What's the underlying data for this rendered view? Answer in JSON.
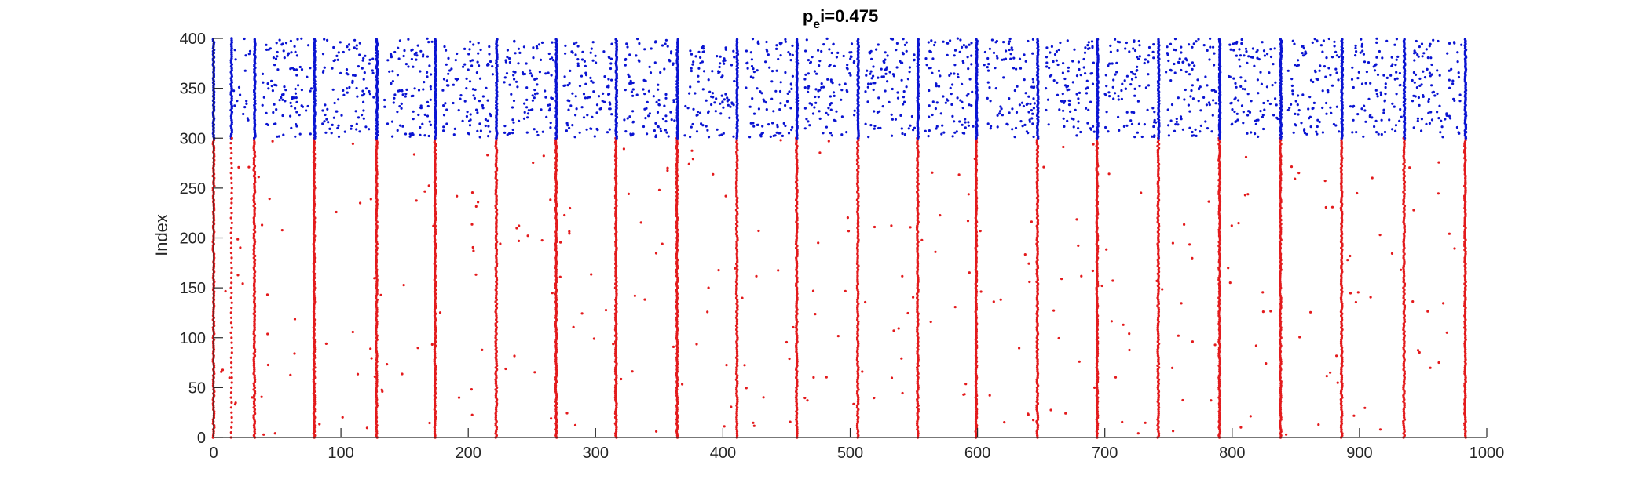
{
  "chart_data": {
    "type": "scatter",
    "title_main": "p",
    "title_sub": "e",
    "title_rest": "i=0.475",
    "xlabel": "",
    "ylabel": "Index",
    "xlim": [
      0,
      1000
    ],
    "ylim": [
      0,
      400
    ],
    "xticks": [
      0,
      100,
      200,
      300,
      400,
      500,
      600,
      700,
      800,
      900,
      1000
    ],
    "yticks": [
      0,
      50,
      100,
      150,
      200,
      250,
      300,
      350,
      400
    ],
    "grid": false,
    "excitatory_index_range": [
      0,
      300
    ],
    "inhibitory_index_range": [
      300,
      400
    ],
    "burst_times": [
      0,
      32,
      79,
      128,
      174,
      222,
      269,
      316,
      364,
      411,
      458,
      506,
      553,
      599,
      647,
      694,
      742,
      790,
      838,
      886,
      935,
      983
    ],
    "first_inhibitory_band": [
      0,
      14
    ],
    "series": [
      {
        "group": "excitatory",
        "color": "#e31a1c"
      },
      {
        "group": "inhibitory",
        "color": "#0a14d2"
      }
    ]
  }
}
